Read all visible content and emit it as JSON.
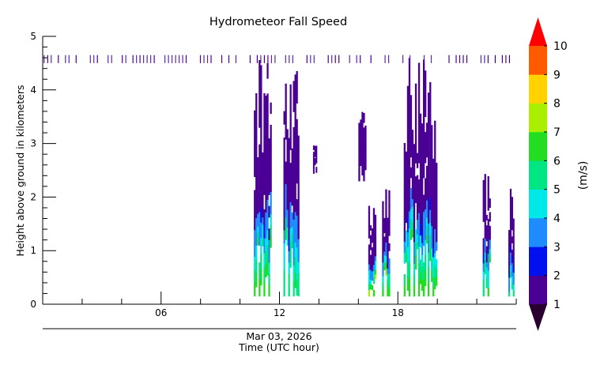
{
  "chart_data": {
    "type": "heatmap",
    "title": "Hydrometeor Fall Speed",
    "ylabel": "Height above ground in kilometers",
    "xlabel_date": "Mar 03, 2026",
    "xlabel": "Time (UTC hour)",
    "xlim": [
      0,
      24
    ],
    "ylim": [
      0,
      5
    ],
    "x_ticks": [
      {
        "value": 6,
        "label": "06"
      },
      {
        "value": 12,
        "label": "12"
      },
      {
        "value": 18,
        "label": "18"
      }
    ],
    "y_ticks": [
      {
        "value": 0,
        "label": "0"
      },
      {
        "value": 1,
        "label": "1"
      },
      {
        "value": 2,
        "label": "2"
      },
      {
        "value": 3,
        "label": "3"
      },
      {
        "value": 4,
        "label": "4"
      },
      {
        "value": 5,
        "label": "5"
      }
    ],
    "colorbar": {
      "label": "(m/s)",
      "min": 1,
      "max": 10,
      "tick_labels": [
        "1",
        "2",
        "3",
        "4",
        "5",
        "6",
        "7",
        "8",
        "9",
        "10"
      ],
      "colors": [
        "#4b0095",
        "#0010ee",
        "#1e8cff",
        "#00e8e8",
        "#00e682",
        "#22dd22",
        "#aaee00",
        "#ffd200",
        "#ff5a00"
      ],
      "over_color": "#ff0000",
      "under_color": "#2a0030"
    },
    "series": [
      {
        "x_start": 10.7,
        "x_end": 11.6,
        "y_bottom": 0.15,
        "y_top": 4.6,
        "speed_near_ground": 6.5
      },
      {
        "x_start": 12.2,
        "x_end": 13.0,
        "y_bottom": 0.15,
        "y_top": 4.6,
        "speed_near_ground": 6.0
      },
      {
        "x_start": 13.7,
        "x_end": 13.9,
        "y_bottom": 2.4,
        "y_top": 3.3,
        "speed_near_ground": 1.5
      },
      {
        "x_start": 16.0,
        "x_end": 16.4,
        "y_bottom": 2.3,
        "y_top": 3.6,
        "speed_near_ground": 1.5
      },
      {
        "x_start": 16.5,
        "x_end": 16.9,
        "y_bottom": 0.15,
        "y_top": 2.1,
        "speed_near_ground": 7.0
      },
      {
        "x_start": 17.2,
        "x_end": 17.6,
        "y_bottom": 0.15,
        "y_top": 2.4,
        "speed_near_ground": 7.0
      },
      {
        "x_start": 18.3,
        "x_end": 20.0,
        "y_bottom": 0.15,
        "y_top": 4.6,
        "speed_near_ground": 6.5
      },
      {
        "x_start": 22.3,
        "x_end": 22.7,
        "y_bottom": 0.15,
        "y_top": 2.8,
        "speed_near_ground": 6.0
      },
      {
        "x_start": 23.6,
        "x_end": 23.9,
        "y_bottom": 0.15,
        "y_top": 2.2,
        "speed_near_ground": 5.0
      }
    ]
  }
}
